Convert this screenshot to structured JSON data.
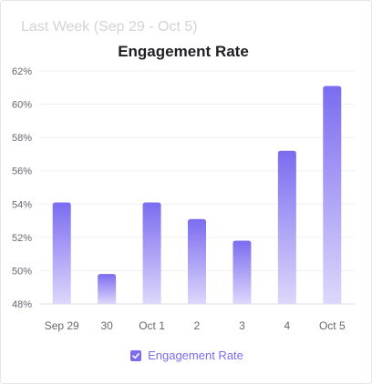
{
  "subtitle": "Last Week (Sep 29 - Oct 5)",
  "chart_data": {
    "type": "bar",
    "title": "Engagement Rate",
    "xlabel": "",
    "ylabel": "",
    "categories": [
      "Sep 29",
      "30",
      "Oct 1",
      "2",
      "3",
      "4",
      "Oct 5"
    ],
    "series": [
      {
        "name": "Engagement Rate",
        "values": [
          54.1,
          49.8,
          54.1,
          53.1,
          51.8,
          57.2,
          61.1
        ]
      }
    ],
    "ylim": [
      48,
      62
    ],
    "yticks": [
      48,
      50,
      52,
      54,
      56,
      58,
      60,
      62
    ],
    "ytick_labels": [
      "48%",
      "50%",
      "52%",
      "54%",
      "56%",
      "58%",
      "60%",
      "62%"
    ],
    "grid": true,
    "legend_position": "bottom",
    "colors": {
      "bar_top": "#7b6cf0",
      "bar_bottom": "#dcd8fb",
      "legend": "#7b6cf0"
    }
  }
}
